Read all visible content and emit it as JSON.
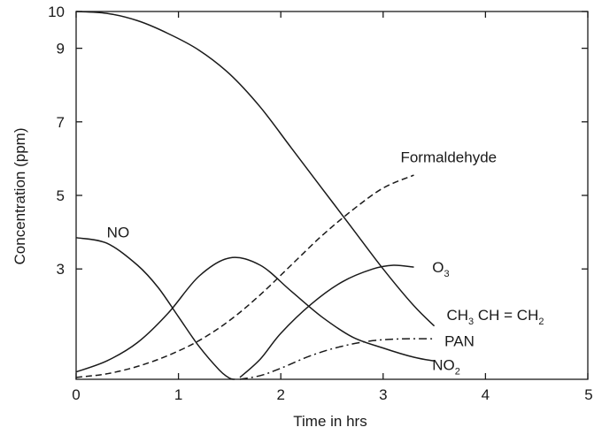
{
  "chart_data": {
    "type": "line",
    "title": "",
    "xlabel": "Time in hrs",
    "ylabel": "Concentration (ppm)",
    "xlim": [
      0,
      5
    ],
    "ylim": [
      0,
      10
    ],
    "xticks": [
      "0",
      "1",
      "2",
      "3",
      "4",
      "5"
    ],
    "yticks": [
      {
        "value": 3,
        "label": "3"
      },
      {
        "value": 5,
        "label": "5"
      },
      {
        "value": 7,
        "label": "7"
      },
      {
        "value": 9,
        "label": "9"
      },
      {
        "value": 10,
        "label": "10"
      }
    ],
    "grid": false,
    "series": [
      {
        "name": "CH3 CH = CH2",
        "style": "solid",
        "x": [
          0,
          0.3,
          0.6,
          0.9,
          1.2,
          1.5,
          1.8,
          2.1,
          2.4,
          2.7,
          3.0,
          3.3,
          3.5
        ],
        "y": [
          10,
          9.95,
          9.75,
          9.4,
          8.95,
          8.3,
          7.4,
          6.3,
          5.2,
          4.1,
          3.0,
          2.0,
          1.45
        ]
      },
      {
        "name": "Formaldehyde",
        "style": "dashed",
        "x": [
          0,
          0.3,
          0.6,
          0.9,
          1.2,
          1.5,
          1.8,
          2.1,
          2.4,
          2.7,
          3.0,
          3.3
        ],
        "y": [
          0.05,
          0.15,
          0.35,
          0.65,
          1.05,
          1.6,
          2.3,
          3.1,
          3.9,
          4.6,
          5.2,
          5.55
        ]
      },
      {
        "name": "NO",
        "style": "solid",
        "x": [
          0,
          0.3,
          0.6,
          0.8,
          1.0,
          1.2,
          1.4,
          1.5,
          1.55
        ],
        "y": [
          3.85,
          3.7,
          3.1,
          2.5,
          1.7,
          0.9,
          0.25,
          0.03,
          0.0
        ]
      },
      {
        "name": "NO2",
        "style": "solid",
        "x": [
          0,
          0.3,
          0.6,
          0.9,
          1.2,
          1.5,
          1.8,
          2.1,
          2.4,
          2.7,
          3.0,
          3.3,
          3.5
        ],
        "y": [
          0.2,
          0.5,
          1.0,
          1.8,
          2.8,
          3.3,
          3.1,
          2.4,
          1.7,
          1.15,
          0.85,
          0.6,
          0.5
        ]
      },
      {
        "name": "O3",
        "style": "solid",
        "x": [
          1.6,
          1.8,
          2.0,
          2.3,
          2.6,
          2.9,
          3.1,
          3.3
        ],
        "y": [
          0.05,
          0.55,
          1.25,
          2.05,
          2.65,
          3.0,
          3.1,
          3.05
        ]
      },
      {
        "name": "PAN",
        "style": "dash-dot",
        "x": [
          1.6,
          1.8,
          2.0,
          2.3,
          2.6,
          2.9,
          3.2,
          3.5
        ],
        "y": [
          0.0,
          0.1,
          0.3,
          0.65,
          0.9,
          1.05,
          1.1,
          1.1
        ]
      }
    ],
    "annotations": [
      {
        "series": "Formaldehyde",
        "text": "Formaldehyde",
        "x": 3.17,
        "y": 6.05
      },
      {
        "series": "NO",
        "text": "NO",
        "x": 0.3,
        "y": 4.0
      },
      {
        "series": "O3",
        "text": "O",
        "sub": "3",
        "x": 3.48,
        "y": 3.05
      },
      {
        "series": "CH3 CH = CH2",
        "text": "CH",
        "sub": "3",
        "tail": " CH = CH",
        "sub2": "2",
        "x": 3.62,
        "y": 1.75
      },
      {
        "series": "PAN",
        "text": "PAN",
        "x": 3.6,
        "y": 1.05
      },
      {
        "series": "NO2",
        "text": "NO",
        "sub": "2",
        "x": 3.48,
        "y": 0.4
      }
    ]
  }
}
